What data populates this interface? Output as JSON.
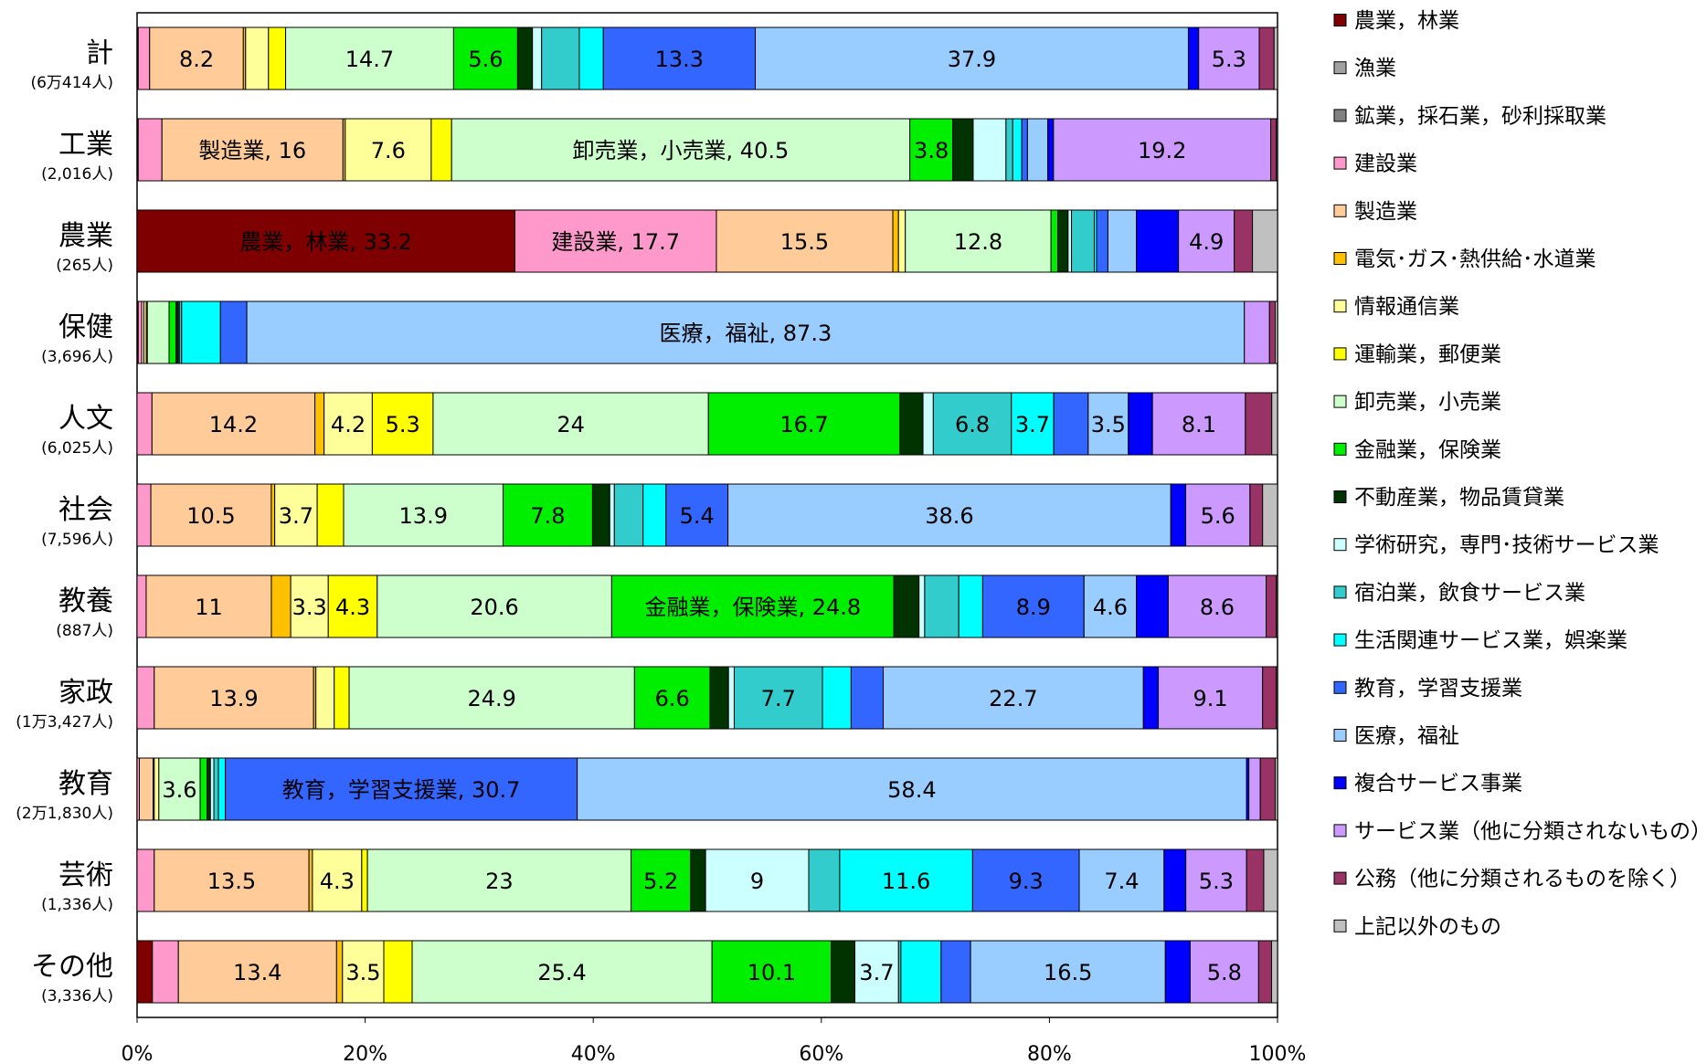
{
  "chart_data": {
    "type": "bar",
    "orientation": "horizontal",
    "stacked": "percent",
    "title": "",
    "xlabel": "",
    "ylabel": "",
    "xlim": [
      0,
      100
    ],
    "x_ticks": [
      "0%",
      "20%",
      "40%",
      "60%",
      "80%",
      "100%"
    ],
    "legend_position": "right",
    "categories": [
      {
        "name": "計",
        "count": "(6万414人)"
      },
      {
        "name": "工業",
        "count": "(2,016人)"
      },
      {
        "name": "農業",
        "count": "(265人)"
      },
      {
        "name": "保健",
        "count": "(3,696人)"
      },
      {
        "name": "人文",
        "count": "(6,025人)"
      },
      {
        "name": "社会",
        "count": "(7,596人)"
      },
      {
        "name": "教養",
        "count": "(887人)"
      },
      {
        "name": "家政",
        "count": "(1万3,427人)"
      },
      {
        "name": "教育",
        "count": "(2万1,830人)"
      },
      {
        "name": "芸術",
        "count": "(1,336人)"
      },
      {
        "name": "その他",
        "count": "(3,336人)"
      }
    ],
    "series": [
      {
        "name": "農業，林業",
        "color": "#7f0000",
        "values": [
          0.1,
          0.1,
          33.2,
          0.1,
          0.0,
          0.0,
          0.0,
          0.0,
          0.0,
          0.0,
          1.3
        ]
      },
      {
        "name": "漁業",
        "color": "#a0a0a0",
        "values": [
          0.0,
          0.0,
          0.0,
          0.0,
          0.0,
          0.0,
          0.0,
          0.0,
          0.0,
          0.0,
          0.0
        ]
      },
      {
        "name": "鉱業，採石業，砂利採取業",
        "color": "#808080",
        "values": [
          0.0,
          0.0,
          0.0,
          0.0,
          0.0,
          0.0,
          0.0,
          0.0,
          0.0,
          0.0,
          0.0
        ]
      },
      {
        "name": "建設業",
        "color": "#ff99cc",
        "values": [
          1.0,
          2.1,
          17.7,
          0.3,
          1.3,
          1.2,
          0.8,
          1.5,
          0.2,
          1.5,
          2.2
        ]
      },
      {
        "name": "製造業",
        "color": "#ffcc99",
        "values": [
          8.2,
          16.0,
          15.5,
          0.2,
          14.2,
          10.5,
          11.0,
          13.9,
          1.2,
          13.5,
          13.4
        ]
      },
      {
        "name": "電気･ガス･熱供給･水道業",
        "color": "#ffc000",
        "values": [
          0.2,
          0.2,
          0.5,
          0.0,
          0.8,
          0.3,
          1.7,
          0.2,
          0.1,
          0.3,
          0.5
        ]
      },
      {
        "name": "情報通信業",
        "color": "#ffff99",
        "values": [
          2.0,
          7.6,
          0.6,
          0.2,
          4.2,
          3.7,
          3.3,
          1.6,
          0.4,
          4.3,
          3.5
        ]
      },
      {
        "name": "運輸業，郵便業",
        "color": "#ffff00",
        "values": [
          1.5,
          1.8,
          0.0,
          0.1,
          5.3,
          2.3,
          4.3,
          1.3,
          0.0,
          0.5,
          2.4
        ]
      },
      {
        "name": "卸売業，小売業",
        "color": "#ccffcc",
        "values": [
          14.7,
          40.5,
          12.8,
          1.9,
          24.0,
          13.9,
          20.6,
          24.9,
          3.6,
          23.0,
          25.4
        ]
      },
      {
        "name": "金融業，保険業",
        "color": "#00ee00",
        "values": [
          5.6,
          3.8,
          0.6,
          0.6,
          16.7,
          7.8,
          24.8,
          6.6,
          0.6,
          5.2,
          10.1
        ]
      },
      {
        "name": "不動産業，物品賃貸業",
        "color": "#003300",
        "values": [
          1.3,
          1.8,
          0.9,
          0.2,
          2.0,
          1.5,
          2.2,
          1.6,
          0.3,
          1.3,
          2.0
        ]
      },
      {
        "name": "学術研究，専門･技術サービス業",
        "color": "#ccffff",
        "values": [
          0.8,
          2.9,
          0.3,
          0.1,
          0.9,
          0.4,
          0.5,
          0.5,
          0.3,
          9.0,
          3.7
        ]
      },
      {
        "name": "宿泊業，飲食サービス業",
        "color": "#33cccc",
        "values": [
          3.3,
          0.6,
          2.0,
          0.2,
          6.8,
          2.5,
          3.0,
          7.7,
          0.4,
          2.7,
          0.2
        ]
      },
      {
        "name": "生活関連サービス業，娯楽業",
        "color": "#00ffff",
        "values": [
          2.1,
          0.8,
          0.2,
          3.4,
          3.7,
          2.0,
          2.1,
          2.5,
          0.6,
          11.6,
          3.4
        ]
      },
      {
        "name": "教育，学習支援業",
        "color": "#3366ff",
        "values": [
          13.3,
          0.5,
          1.0,
          2.3,
          3.0,
          5.4,
          8.9,
          2.8,
          30.7,
          9.3,
          2.5
        ]
      },
      {
        "name": "医療，福祉",
        "color": "#99ccff",
        "values": [
          37.9,
          1.8,
          2.5,
          87.3,
          3.5,
          38.6,
          4.6,
          22.7,
          58.4,
          7.4,
          16.5
        ]
      },
      {
        "name": "複合サービス事業",
        "color": "#0000ff",
        "values": [
          0.9,
          0.5,
          3.7,
          0.0,
          2.1,
          1.3,
          2.8,
          1.3,
          0.2,
          1.9,
          2.1
        ]
      },
      {
        "name": "サービス業（他に分類されないもの）",
        "color": "#cc99ff",
        "values": [
          5.3,
          19.2,
          4.9,
          2.2,
          8.1,
          5.6,
          8.6,
          9.1,
          1.0,
          5.3,
          5.8
        ]
      },
      {
        "name": "公務（他に分類されるものを除く）",
        "color": "#993366",
        "values": [
          1.3,
          0.5,
          1.6,
          0.5,
          2.3,
          1.1,
          0.9,
          1.2,
          1.3,
          1.5,
          1.1
        ]
      },
      {
        "name": "上記以外のもの",
        "color": "#c0c0c0",
        "values": [
          0.3,
          0.1,
          2.2,
          0.2,
          0.5,
          1.3,
          0.1,
          0.1,
          0.2,
          1.2,
          0.5
        ]
      }
    ],
    "data_labels": [
      {
        "row": 0,
        "series": 4,
        "text": "8.2"
      },
      {
        "row": 0,
        "series": 8,
        "text": "14.7"
      },
      {
        "row": 0,
        "series": 9,
        "text": "5.6"
      },
      {
        "row": 0,
        "series": 14,
        "text": "13.3"
      },
      {
        "row": 0,
        "series": 15,
        "text": "37.9"
      },
      {
        "row": 0,
        "series": 17,
        "text": "5.3"
      },
      {
        "row": 1,
        "series": 4,
        "text": "製造業, 16"
      },
      {
        "row": 1,
        "series": 6,
        "text": "7.6"
      },
      {
        "row": 1,
        "series": 8,
        "text": "卸売業，小売業, 40.5"
      },
      {
        "row": 1,
        "series": 9,
        "text": "3.8"
      },
      {
        "row": 1,
        "series": 17,
        "text": "19.2"
      },
      {
        "row": 2,
        "series": 0,
        "text": "農業，林業, 33.2"
      },
      {
        "row": 2,
        "series": 3,
        "text": "建設業, 17.7"
      },
      {
        "row": 2,
        "series": 4,
        "text": "15.5"
      },
      {
        "row": 2,
        "series": 8,
        "text": "12.8"
      },
      {
        "row": 2,
        "series": 17,
        "text": "4.9"
      },
      {
        "row": 3,
        "series": 15,
        "text": "医療，福祉, 87.3"
      },
      {
        "row": 4,
        "series": 4,
        "text": "14.2"
      },
      {
        "row": 4,
        "series": 6,
        "text": "4.2"
      },
      {
        "row": 4,
        "series": 7,
        "text": "5.3"
      },
      {
        "row": 4,
        "series": 8,
        "text": "24"
      },
      {
        "row": 4,
        "series": 9,
        "text": "16.7"
      },
      {
        "row": 4,
        "series": 12,
        "text": "6.8"
      },
      {
        "row": 4,
        "series": 13,
        "text": "3.7"
      },
      {
        "row": 4,
        "series": 15,
        "text": "3.5"
      },
      {
        "row": 4,
        "series": 17,
        "text": "8.1"
      },
      {
        "row": 5,
        "series": 4,
        "text": "10.5"
      },
      {
        "row": 5,
        "series": 6,
        "text": "3.7"
      },
      {
        "row": 5,
        "series": 8,
        "text": "13.9"
      },
      {
        "row": 5,
        "series": 9,
        "text": "7.8"
      },
      {
        "row": 5,
        "series": 14,
        "text": "5.4"
      },
      {
        "row": 5,
        "series": 15,
        "text": "38.6"
      },
      {
        "row": 5,
        "series": 17,
        "text": "5.6"
      },
      {
        "row": 6,
        "series": 4,
        "text": "11"
      },
      {
        "row": 6,
        "series": 6,
        "text": "3.3"
      },
      {
        "row": 6,
        "series": 7,
        "text": "4.3"
      },
      {
        "row": 6,
        "series": 8,
        "text": "20.6"
      },
      {
        "row": 6,
        "series": 9,
        "text": "金融業，保険業, 24.8"
      },
      {
        "row": 6,
        "series": 14,
        "text": "8.9"
      },
      {
        "row": 6,
        "series": 15,
        "text": "4.6"
      },
      {
        "row": 6,
        "series": 17,
        "text": "8.6"
      },
      {
        "row": 7,
        "series": 4,
        "text": "13.9"
      },
      {
        "row": 7,
        "series": 8,
        "text": "24.9"
      },
      {
        "row": 7,
        "series": 9,
        "text": "6.6"
      },
      {
        "row": 7,
        "series": 12,
        "text": "7.7"
      },
      {
        "row": 7,
        "series": 15,
        "text": "22.7"
      },
      {
        "row": 7,
        "series": 17,
        "text": "9.1"
      },
      {
        "row": 8,
        "series": 8,
        "text": "3.6"
      },
      {
        "row": 8,
        "series": 14,
        "text": "教育，学習支援業, 30.7"
      },
      {
        "row": 8,
        "series": 15,
        "text": "58.4"
      },
      {
        "row": 9,
        "series": 4,
        "text": "13.5"
      },
      {
        "row": 9,
        "series": 6,
        "text": "4.3"
      },
      {
        "row": 9,
        "series": 8,
        "text": "23"
      },
      {
        "row": 9,
        "series": 9,
        "text": "5.2"
      },
      {
        "row": 9,
        "series": 11,
        "text": "9"
      },
      {
        "row": 9,
        "series": 13,
        "text": "11.6"
      },
      {
        "row": 9,
        "series": 14,
        "text": "9.3"
      },
      {
        "row": 9,
        "series": 15,
        "text": "7.4"
      },
      {
        "row": 9,
        "series": 17,
        "text": "5.3"
      },
      {
        "row": 10,
        "series": 4,
        "text": "13.4"
      },
      {
        "row": 10,
        "series": 6,
        "text": "3.5"
      },
      {
        "row": 10,
        "series": 8,
        "text": "25.4"
      },
      {
        "row": 10,
        "series": 9,
        "text": "10.1"
      },
      {
        "row": 10,
        "series": 11,
        "text": "3.7"
      },
      {
        "row": 10,
        "series": 15,
        "text": "16.5"
      },
      {
        "row": 10,
        "series": 17,
        "text": "5.8"
      }
    ]
  }
}
